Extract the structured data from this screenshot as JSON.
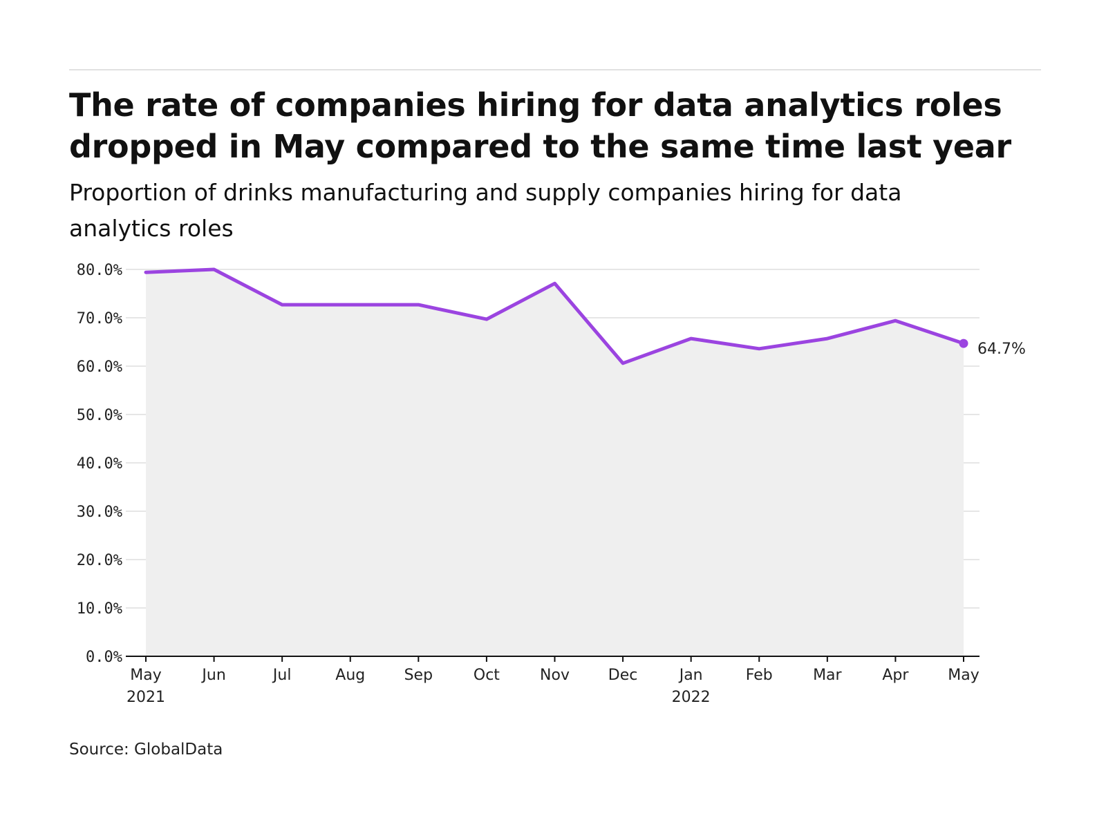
{
  "header": {
    "title_lines": [
      "The rate of companies hiring for data analytics roles",
      "dropped in May compared to the same time last year"
    ],
    "subtitle_lines": [
      "Proportion of drinks manufacturing and supply companies hiring for data",
      "analytics roles"
    ]
  },
  "footer": {
    "source": "Source: GlobalData"
  },
  "colors": {
    "line": "#9b44e0",
    "area": "#efefef",
    "grid": "#dddddd",
    "axis": "#111111"
  },
  "chart_data": {
    "type": "line",
    "title": "The rate of companies hiring for data analytics roles dropped in May compared to the same time last year",
    "subtitle": "Proportion of drinks manufacturing and supply companies hiring for data analytics roles",
    "xlabel": "",
    "ylabel": "",
    "categories": [
      "May 2021",
      "Jun 2021",
      "Jul 2021",
      "Aug 2021",
      "Sep 2021",
      "Oct 2021",
      "Nov 2021",
      "Dec 2021",
      "Jan 2022",
      "Feb 2022",
      "Mar 2022",
      "Apr 2022",
      "May 2022"
    ],
    "x_tick_labels": [
      [
        "May",
        "2021"
      ],
      [
        "Jun"
      ],
      [
        "Jul"
      ],
      [
        "Aug"
      ],
      [
        "Sep"
      ],
      [
        "Oct"
      ],
      [
        "Nov"
      ],
      [
        "Dec"
      ],
      [
        "Jan",
        "2022"
      ],
      [
        "Feb"
      ],
      [
        "Mar"
      ],
      [
        "Apr"
      ],
      [
        "May"
      ]
    ],
    "series": [
      {
        "values": [
          79.4,
          80.0,
          72.7,
          72.7,
          72.7,
          69.7,
          77.1,
          60.6,
          65.7,
          63.6,
          65.7,
          69.4,
          64.7
        ]
      }
    ],
    "ylim": [
      0,
      80
    ],
    "y_ticks": [
      0,
      10,
      20,
      30,
      40,
      50,
      60,
      70,
      80
    ],
    "y_tick_labels": [
      "0.0%",
      "10.0%",
      "20.0%",
      "30.0%",
      "40.0%",
      "50.0%",
      "60.0%",
      "70.0%",
      "80.0%"
    ],
    "end_label": "64.7%",
    "area_fill": true,
    "grid": true,
    "legend": "none"
  }
}
